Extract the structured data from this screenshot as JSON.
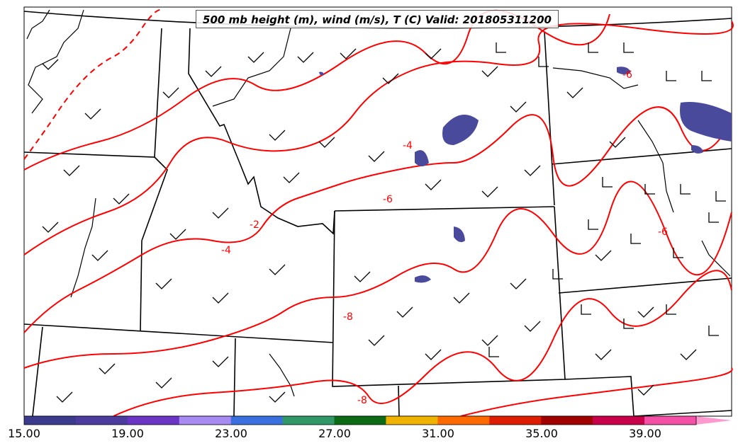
{
  "title": "500 mb height (m), wind (m/s), T (C) Valid: 201805311200",
  "contour_labels": [
    "-4",
    "-6",
    "-2",
    "-4",
    "-6",
    "-8",
    "-8",
    "-6"
  ],
  "colorbar": {
    "tick_labels": [
      "15.00",
      "19.00",
      "23.00",
      "27.00",
      "31.00",
      "35.00",
      "39.00"
    ],
    "colors": [
      "#3b3a8c",
      "#4b3c9e",
      "#6a34c4",
      "#a98af2",
      "#3a6fe0",
      "#2f9866",
      "#0b6a13",
      "#f0b400",
      "#ff6a00",
      "#dd1c00",
      "#a00000",
      "#c8004a",
      "#f550a8",
      "#ff9ad0"
    ]
  },
  "colors": {
    "temperature_contour": "#ff0000",
    "wind_speed_fill": "#4a4a9c",
    "borders": "#000000"
  }
}
